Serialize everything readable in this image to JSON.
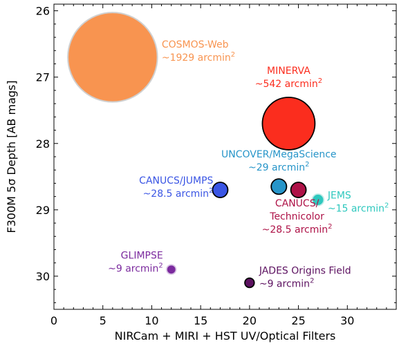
{
  "chart_data": {
    "type": "scatter",
    "title": "",
    "xlabel": "NIRCam + MIRI + HST UV/Optical Filters",
    "ylabel": "F300M 5σ Depth [AB mags]",
    "xlim": [
      0,
      35
    ],
    "ylim": [
      30.5,
      25.9
    ],
    "y_inverted": true,
    "xticks": [
      0,
      5,
      10,
      15,
      20,
      25,
      30
    ],
    "yticks": [
      26,
      27,
      28,
      29,
      30
    ],
    "grid": false,
    "points": [
      {
        "name": "COSMOS-Web",
        "area_text": "~1929 arcmin",
        "area": 1929,
        "x": 6,
        "y": 26.7,
        "color": "#f89450",
        "edge": "#d0d0d0"
      },
      {
        "name": "MINERVA",
        "area_text": "~542 arcmin",
        "area": 542,
        "x": 24,
        "y": 27.7,
        "color": "#fb2d1e",
        "edge": "#000000"
      },
      {
        "name": "UNCOVER/MegaScience",
        "area_text": "~29 arcmin",
        "area": 29,
        "x": 23,
        "y": 28.65,
        "color": "#2795c9",
        "edge": "#000000"
      },
      {
        "name": "CANUCS/JUMPS",
        "area_text": "~28.5 arcmin",
        "area": 28.5,
        "x": 17,
        "y": 28.7,
        "color": "#3a55e4",
        "edge": "#000000"
      },
      {
        "name": "CANUCS/ Technicolor",
        "area_text": "~28.5 arcmin",
        "area": 28.5,
        "x": 25,
        "y": 28.7,
        "color": "#ae1247",
        "edge": "#000000"
      },
      {
        "name": "JEMS",
        "area_text": "~15 arcmin",
        "area": 15,
        "x": 27,
        "y": 28.85,
        "color": "#2ec8be",
        "edge": "#c0ece8"
      },
      {
        "name": "GLIMPSE",
        "area_text": "~9 arcmin",
        "area": 9,
        "x": 12,
        "y": 29.9,
        "color": "#7b2a9e",
        "edge": "#d9c4e4"
      },
      {
        "name": "JADES Origins Field",
        "area_text": "~9 arcmin",
        "area": 9,
        "x": 20,
        "y": 30.1,
        "color": "#5c1160",
        "edge": "#000000"
      }
    ],
    "labels": [
      {
        "point": 0,
        "lines": [
          "COSMOS-Web",
          "~1929 arcmin"
        ],
        "color": "#f89450"
      },
      {
        "point": 1,
        "lines": [
          "MINERVA",
          "~542 arcmin"
        ],
        "color": "#fb2d1e"
      },
      {
        "point": 2,
        "lines": [
          "UNCOVER/MegaScience",
          "~29 arcmin"
        ],
        "color": "#2795c9"
      },
      {
        "point": 3,
        "lines": [
          "CANUCS/JUMPS",
          "~28.5 arcmin"
        ],
        "color": "#3a55e4"
      },
      {
        "point": 4,
        "lines": [
          "CANUCS/",
          "Technicolor",
          "~28.5 arcmin"
        ],
        "color": "#ae1247"
      },
      {
        "point": 5,
        "lines": [
          "JEMS",
          "~15 arcmin"
        ],
        "color": "#2ec8be"
      },
      {
        "point": 6,
        "lines": [
          "GLIMPSE",
          "~9 arcmin"
        ],
        "color": "#7b2a9e"
      },
      {
        "point": 7,
        "lines": [
          "JADES Origins Field",
          "~9 arcmin"
        ],
        "color": "#5c1160"
      }
    ],
    "superscript": "2"
  }
}
